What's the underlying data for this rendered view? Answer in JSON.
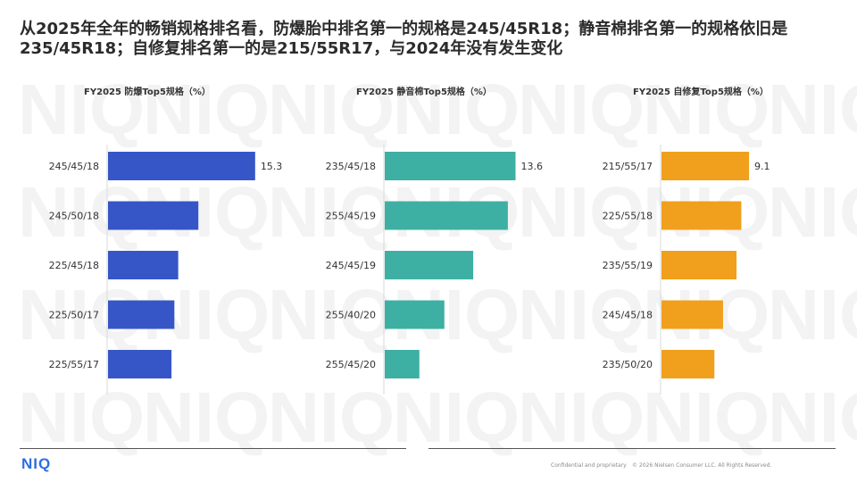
{
  "headline": "从2025年全年的畅销规格排名看，防爆胎中排名第一的规格是245/45R18；静音棉排名第一的规格依旧是235/45R18；自修复排名第一的是215/55R17，与2024年没有发生变化",
  "chart_data": [
    {
      "type": "bar",
      "title": "FY2025 防爆Top5规格（%）",
      "color": "#3656c7",
      "categories": [
        "245/45/18",
        "245/50/18",
        "225/45/18",
        "225/50/17",
        "225/55/17"
      ],
      "values": [
        15.3,
        9.4,
        7.3,
        6.9,
        6.6
      ],
      "value_labels": [
        "15.3",
        "",
        "",
        "",
        ""
      ],
      "xlim": [
        0,
        22
      ]
    },
    {
      "type": "bar",
      "title": "FY2025 静音棉Top5规格（%）",
      "color": "#3db0a3",
      "categories": [
        "235/45/18",
        "255/45/19",
        "245/45/19",
        "255/40/20",
        "255/45/20"
      ],
      "values": [
        13.6,
        12.8,
        9.2,
        6.2,
        3.6
      ],
      "value_labels": [
        "13.6",
        "",
        "",
        "",
        ""
      ],
      "xlim": [
        0,
        22
      ]
    },
    {
      "type": "bar",
      "title": "FY2025 自修复Top5规格（%）",
      "color": "#f0a01c",
      "categories": [
        "215/55/17",
        "225/55/18",
        "235/55/19",
        "245/45/18",
        "235/50/20"
      ],
      "values": [
        9.1,
        8.3,
        7.8,
        6.4,
        5.5
      ],
      "value_labels": [
        "9.1",
        "",
        "",
        "",
        ""
      ],
      "xlim": [
        0,
        22
      ]
    }
  ],
  "footer": {
    "logo": "NIQ",
    "confidential": "Confidential and proprietary",
    "copyright": "© 2026 Nielsen Consumer LLC. All Rights Reserved."
  },
  "watermark_text": "NIQ"
}
